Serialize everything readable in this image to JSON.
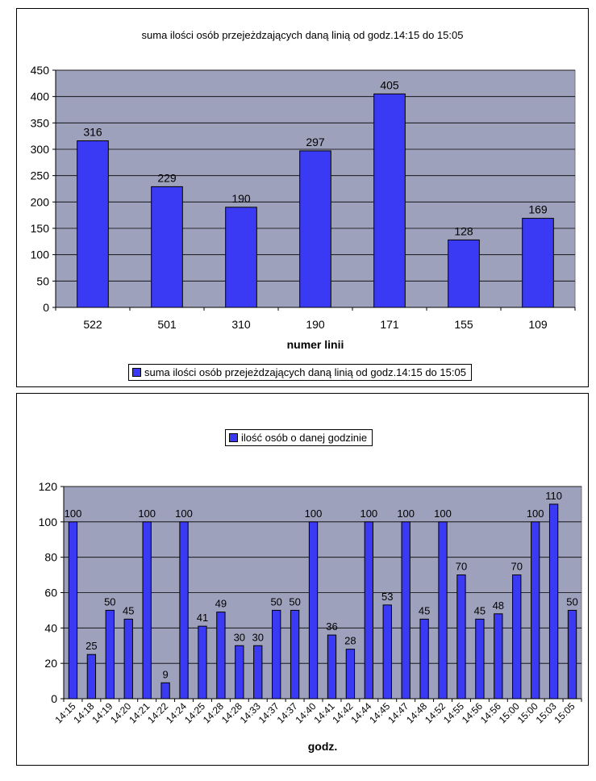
{
  "chart_data": [
    {
      "type": "bar",
      "title": "suma ilości osób przejeżdzających daną linią od godz.14:15 do 15:05",
      "xlabel": "numer linii",
      "ylabel": "",
      "categories": [
        "522",
        "501",
        "310",
        "190",
        "171",
        "155",
        "109"
      ],
      "series": [
        {
          "name": "suma ilości osób przejeżdzających daną linią od godz.14:15 do 15:05",
          "values": [
            316,
            229,
            190,
            297,
            405,
            128,
            169
          ]
        }
      ],
      "ylim": [
        0,
        450
      ],
      "yticks": [
        0,
        50,
        100,
        150,
        200,
        250,
        300,
        350,
        400,
        450
      ],
      "grid": true,
      "legend": "bottom",
      "bar_color": "#3a3af5",
      "plot_bg": "#9ea1bc"
    },
    {
      "type": "bar",
      "title": "",
      "xlabel": "godz.",
      "ylabel": "",
      "categories": [
        "14:15",
        "14:18",
        "14:19",
        "14:20",
        "14:21",
        "14:22",
        "14:24",
        "14:25",
        "14:28",
        "14:28",
        "14:33",
        "14:37",
        "14:37",
        "14:40",
        "14:41",
        "14:42",
        "14:44",
        "14:45",
        "14:47",
        "14:48",
        "14:52",
        "14:55",
        "14:56",
        "14:56",
        "15:00",
        "15:00",
        "15:03",
        "15:05"
      ],
      "series": [
        {
          "name": "ilość osób o danej godzinie",
          "values": [
            100,
            25,
            50,
            45,
            100,
            9,
            100,
            41,
            49,
            30,
            30,
            50,
            50,
            100,
            36,
            28,
            100,
            53,
            100,
            45,
            100,
            70,
            45,
            48,
            70,
            100,
            110,
            50
          ]
        }
      ],
      "ylim": [
        0,
        120
      ],
      "yticks": [
        0,
        20,
        40,
        60,
        80,
        100,
        120
      ],
      "grid": true,
      "legend": "top",
      "bar_color": "#3a3af5",
      "plot_bg": "#9ea1bc"
    }
  ]
}
